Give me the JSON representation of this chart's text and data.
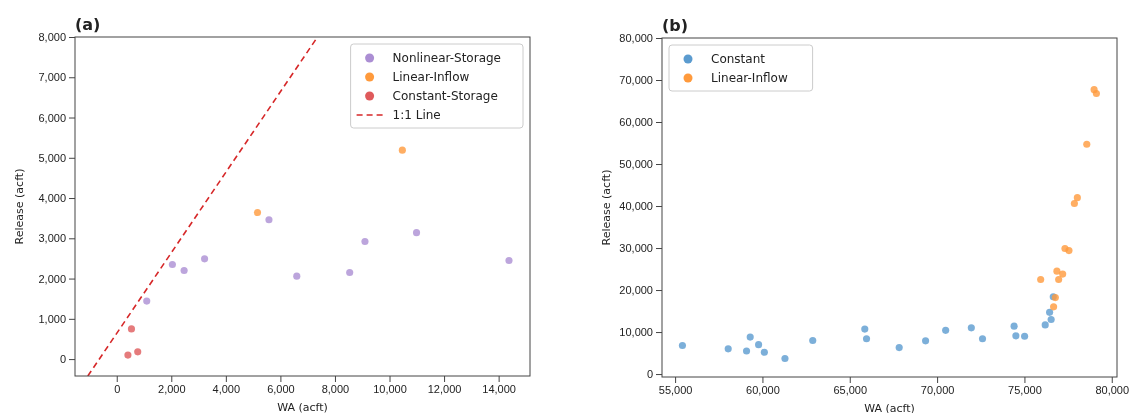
{
  "chart_data": [
    {
      "type": "scatter",
      "title": "(a)",
      "xlabel": "WA (acft)",
      "ylabel": "Release (acft)",
      "xlim": [
        -1530,
        15150
      ],
      "ylim": [
        -420,
        8000
      ],
      "xticks": [
        {
          "value": 0,
          "label": "0"
        },
        {
          "value": 2000,
          "label": "2,000"
        },
        {
          "value": 4000,
          "label": "4,000"
        },
        {
          "value": 6000,
          "label": "6,000"
        },
        {
          "value": 8000,
          "label": "8,000"
        },
        {
          "value": 10000,
          "label": "10,000"
        },
        {
          "value": 12000,
          "label": "12,000"
        },
        {
          "value": 14000,
          "label": "14,000"
        }
      ],
      "yticks": [
        {
          "value": 0,
          "label": "0"
        },
        {
          "value": 1000,
          "label": "1,000"
        },
        {
          "value": 2000,
          "label": "2,000"
        },
        {
          "value": 3000,
          "label": "3,000"
        },
        {
          "value": 4000,
          "label": "4,000"
        },
        {
          "value": 5000,
          "label": "5,000"
        },
        {
          "value": 6000,
          "label": "6,000"
        },
        {
          "value": 7000,
          "label": "7,000"
        },
        {
          "value": 8000,
          "label": "8,000"
        }
      ],
      "legend": "top right",
      "marker": "circle",
      "grid": false,
      "series": [
        {
          "name": "Nonlinear-Storage",
          "color": "#ab8ed3",
          "x": [
            1100,
            2040,
            2470,
            3220,
            5580,
            6600,
            8540,
            9100,
            10990,
            14380
          ],
          "values": [
            1440,
            2350,
            2200,
            2490,
            3460,
            2060,
            2150,
            2920,
            3140,
            2450
          ]
        },
        {
          "name": "Linear-Inflow",
          "color": "#ff9a3c",
          "x": [
            5160,
            10470
          ],
          "values": [
            3640,
            5190
          ]
        },
        {
          "name": "Constant-Storage",
          "color": "#df5a5b",
          "x": [
            540,
            410,
            770
          ],
          "values": [
            750,
            100,
            180
          ]
        },
        {
          "name": "1:1 Line",
          "type": "line",
          "line_style": "dashed",
          "marker": "none",
          "color": "#d62728",
          "x": [
            -1060,
            7360
          ],
          "values": [
            -420,
            8000
          ]
        }
      ]
    },
    {
      "type": "scatter",
      "title": "(b)",
      "xlabel": "WA (acft)",
      "ylabel": "Release (acft)",
      "xlim": [
        54250,
        80300
      ],
      "ylim": [
        -700,
        80000
      ],
      "xticks": [
        {
          "value": 55000,
          "label": "55,000"
        },
        {
          "value": 60000,
          "label": "60,000"
        },
        {
          "value": 65000,
          "label": "65,000"
        },
        {
          "value": 70000,
          "label": "70,000"
        },
        {
          "value": 75000,
          "label": "75,000"
        },
        {
          "value": 80000,
          "label": "80,000"
        }
      ],
      "yticks": [
        {
          "value": 0,
          "label": "0"
        },
        {
          "value": 10000,
          "label": "10,000"
        },
        {
          "value": 20000,
          "label": "20,000"
        },
        {
          "value": 30000,
          "label": "30,000"
        },
        {
          "value": 40000,
          "label": "40,000"
        },
        {
          "value": 50000,
          "label": "50,000"
        },
        {
          "value": 60000,
          "label": "60,000"
        },
        {
          "value": 70000,
          "label": "70,000"
        },
        {
          "value": 80000,
          "label": "80,000"
        }
      ],
      "legend": "top left",
      "marker": "circle",
      "grid": false,
      "series": [
        {
          "name": "Constant",
          "color": "#5b9bcf",
          "x": [
            55420,
            58040,
            59090,
            59300,
            59780,
            60110,
            61290,
            62880,
            65860,
            65960,
            67830,
            69340,
            70490,
            71960,
            72600,
            74410,
            74510,
            75010,
            76190,
            76440,
            76530,
            76650
          ],
          "values": [
            6800,
            6000,
            5500,
            8800,
            7000,
            5200,
            3700,
            8000,
            10700,
            8400,
            6300,
            7900,
            10400,
            11000,
            8400,
            11400,
            9100,
            9000,
            11700,
            14700,
            13000,
            18400
          ]
        },
        {
          "name": "Linear-Inflow",
          "color": "#ff9a3c",
          "x": [
            75930,
            76670,
            76770,
            76860,
            76960,
            77190,
            77320,
            77550,
            77860,
            78030,
            78570,
            78990,
            79120
          ],
          "values": [
            22500,
            16000,
            18200,
            24500,
            22500,
            23800,
            29900,
            29400,
            40600,
            42000,
            54700,
            67700,
            66800
          ]
        }
      ]
    }
  ]
}
